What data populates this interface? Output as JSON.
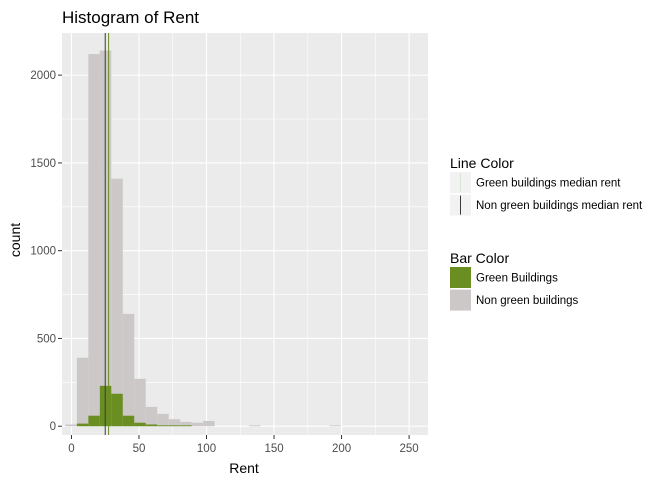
{
  "chart_data": {
    "type": "bar",
    "title": "Histogram of Rent",
    "xlabel": "Rent",
    "ylabel": "count",
    "xlim": [
      -7,
      264
    ],
    "ylim": [
      -50,
      2240
    ],
    "x_ticks": [
      0,
      50,
      100,
      150,
      200,
      250
    ],
    "y_ticks": [
      0,
      500,
      1000,
      1500,
      2000
    ],
    "bin_width": 8.5,
    "bin_start": -4.5,
    "grid": true,
    "stacking": "overlap",
    "legend_position": "right",
    "series": [
      {
        "name": "Non green buildings",
        "color": "#ccc8c8",
        "values": [
          10,
          390,
          2120,
          2140,
          1410,
          640,
          270,
          110,
          70,
          40,
          25,
          20,
          30,
          0,
          0,
          0,
          5,
          0,
          0,
          0,
          0,
          0,
          0,
          5,
          0,
          0,
          0,
          0,
          0,
          0,
          0,
          0
        ]
      },
      {
        "name": "Green Buildings",
        "color": "#6b8e23",
        "values": [
          0,
          15,
          60,
          230,
          185,
          60,
          20,
          10,
          5,
          5,
          5,
          0,
          0,
          0,
          0,
          0,
          0,
          0,
          0,
          0,
          0,
          0,
          0,
          0,
          0,
          0,
          0,
          0,
          0,
          0,
          0,
          0
        ]
      }
    ],
    "reference_lines": [
      {
        "name": "Green buildings median rent",
        "x": 27.5,
        "color": "#6b8e23"
      },
      {
        "name": "Non green buildings median rent",
        "x": 25.0,
        "color": "#3a3a3a"
      }
    ],
    "legends": [
      {
        "title": "Line Color",
        "kind": "line",
        "items": [
          {
            "label": "Green buildings median rent",
            "color": "#d8e6d0"
          },
          {
            "label": "Non green buildings median rent",
            "color": "#3a3a3a"
          }
        ]
      },
      {
        "title": "Bar Color",
        "kind": "fill",
        "items": [
          {
            "label": "Green Buildings",
            "color": "#6b8e23"
          },
          {
            "label": "Non green buildings",
            "color": "#ccc8c8"
          }
        ]
      }
    ]
  }
}
